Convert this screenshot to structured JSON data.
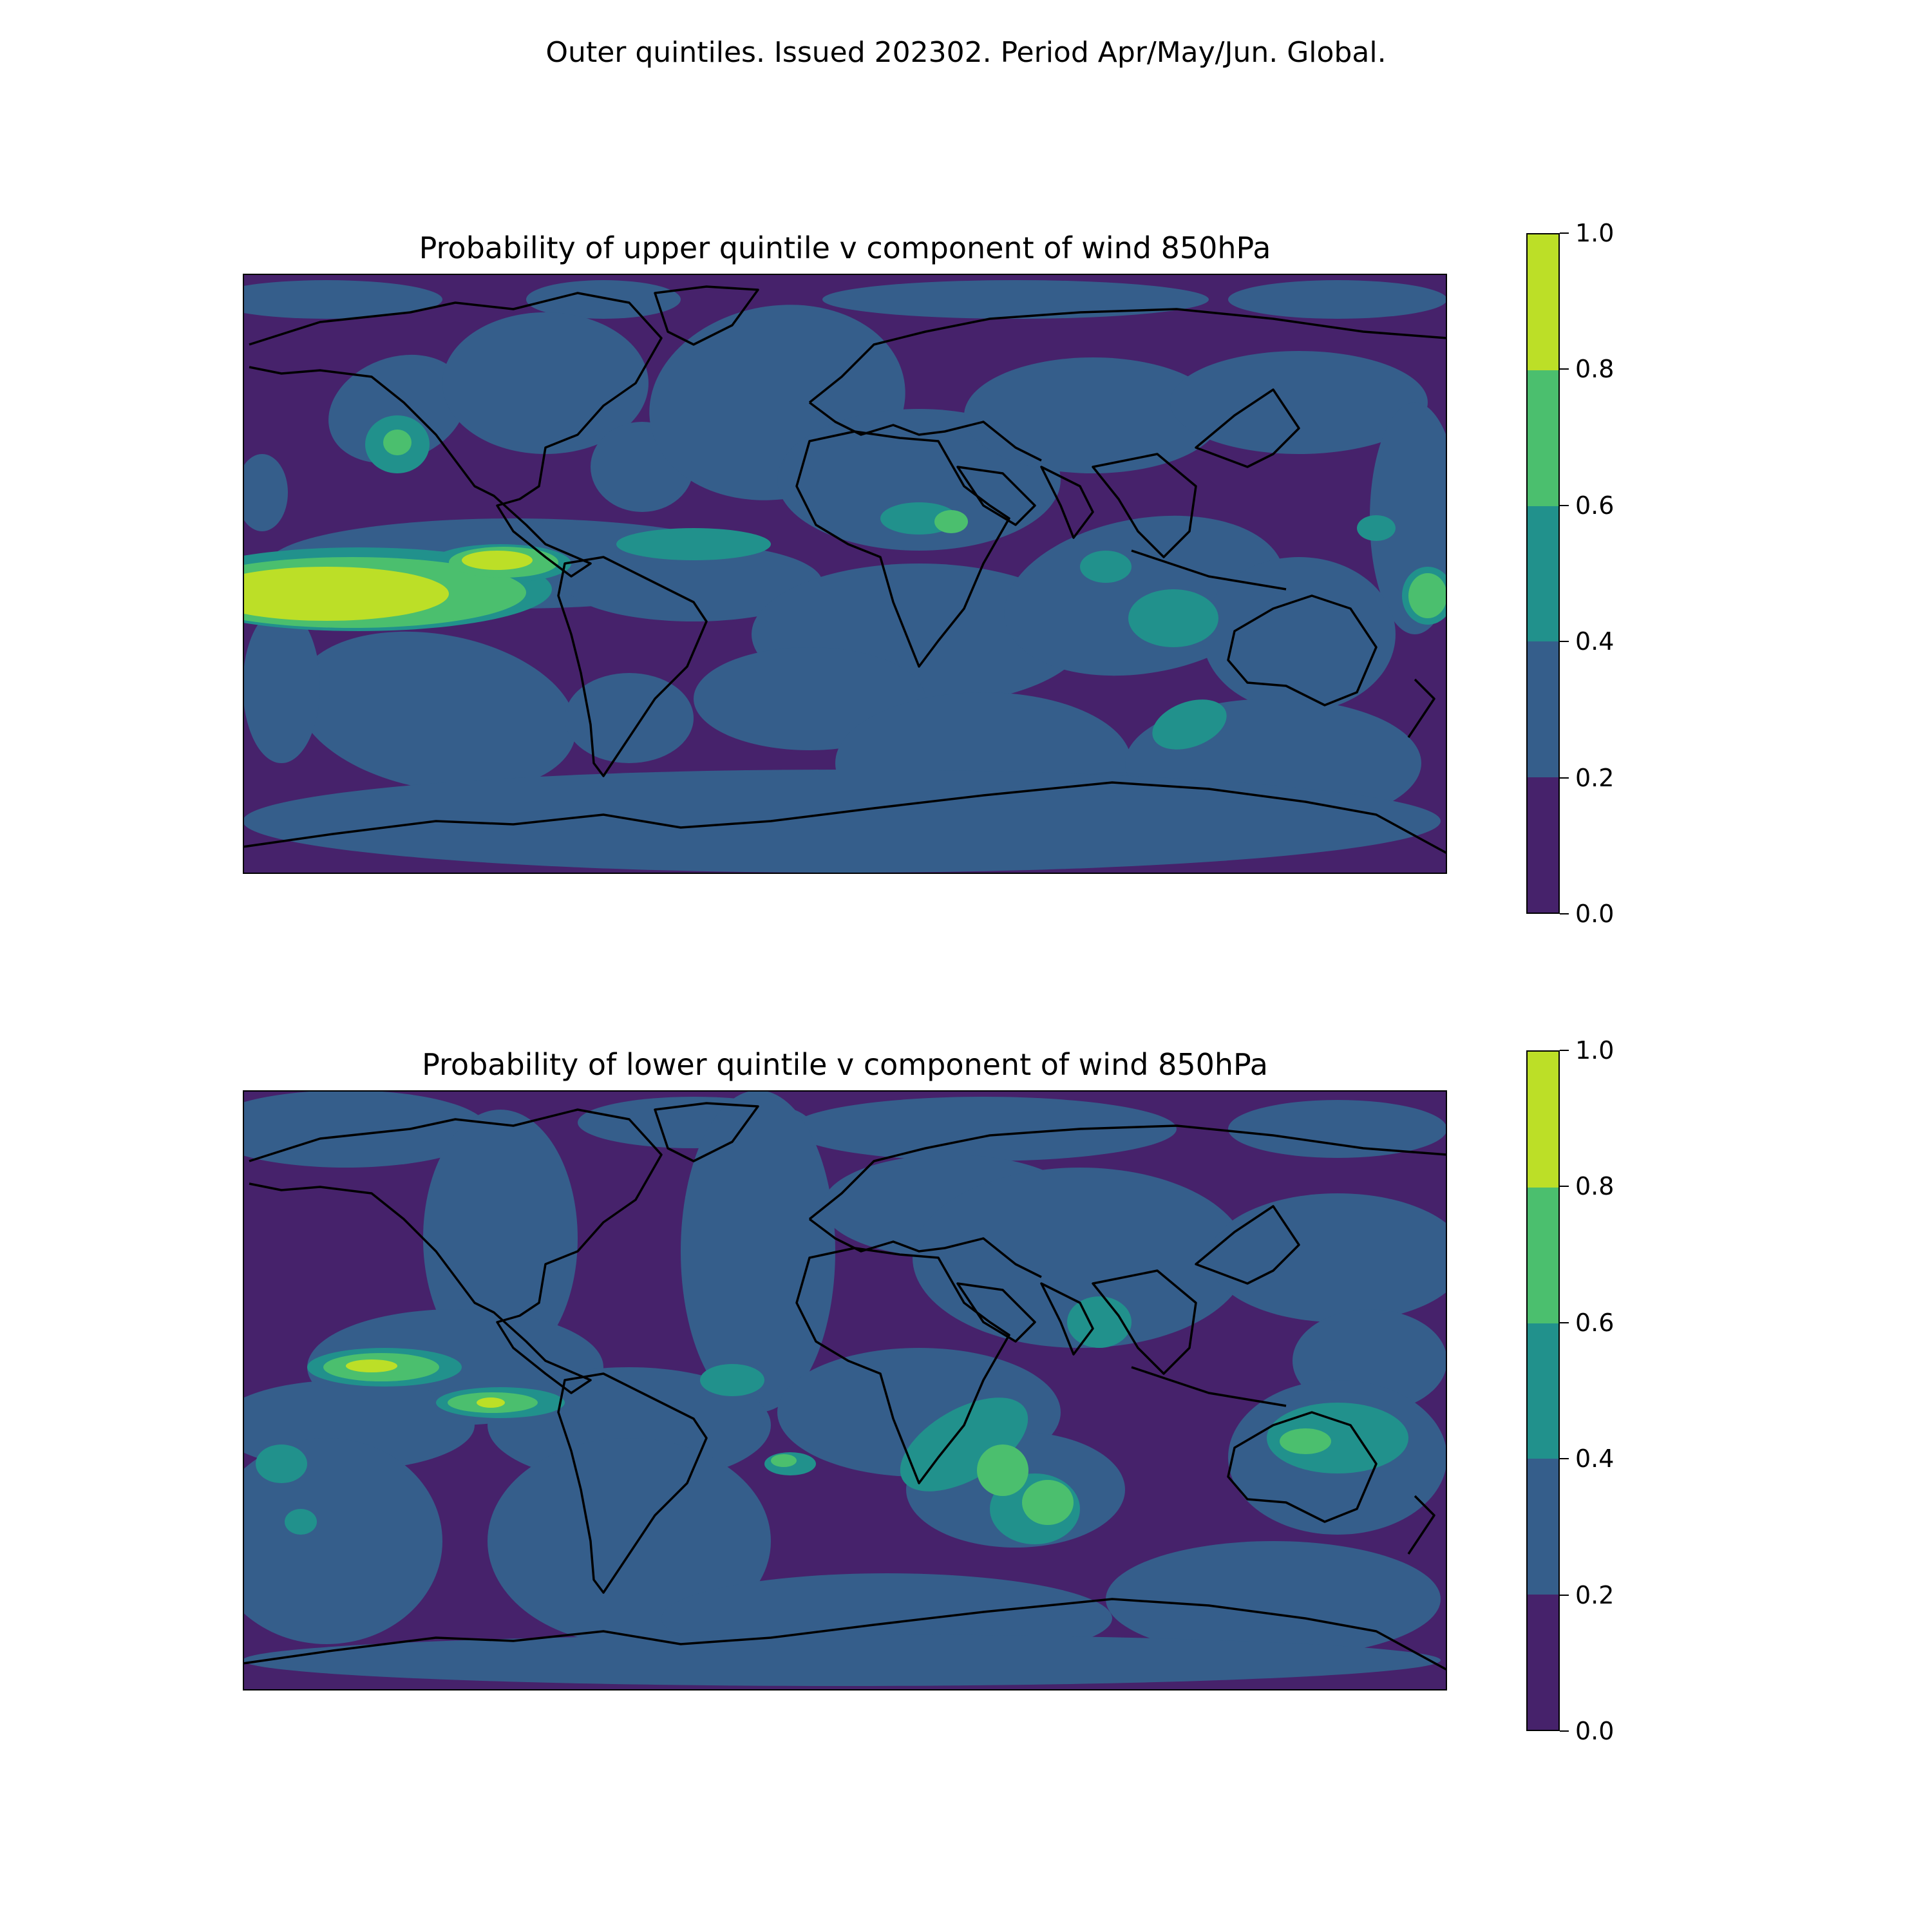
{
  "suptitle": "Outer quintiles. Issued 202302. Period Apr/May/Jun. Global.",
  "colorbar": {
    "levels": [
      0.0,
      0.2,
      0.4,
      0.6,
      0.8,
      1.0
    ],
    "tick_labels": [
      "0.0",
      "0.2",
      "0.4",
      "0.6",
      "0.8",
      "1.0"
    ],
    "colors": [
      "#46226b",
      "#355e8b",
      "#21918c",
      "#4bbf6e",
      "#bcdf27"
    ]
  },
  "panels": [
    {
      "title": "Probability of upper quintile v component of wind 850hPa"
    },
    {
      "title": "Probability of lower quintile v component of wind 850hPa"
    }
  ],
  "chart_data": [
    {
      "type": "heatmap",
      "title": "Probability of upper quintile v component of wind 850hPa",
      "value_range": [
        0.0,
        1.0
      ],
      "levels": [
        0.0,
        0.2,
        0.4,
        0.6,
        0.8,
        1.0
      ],
      "dominant_background_value_band": [
        0.0,
        0.2
      ],
      "notable_features": [
        {
          "region": "Tropical central/eastern Pacific (south of equator)",
          "band": [
            0.8,
            1.0
          ]
        },
        {
          "region": "Eastern Pacific off Central America",
          "band": [
            0.8,
            1.0
          ]
        },
        {
          "region": "Tropical western Pacific near dateline",
          "band": [
            0.6,
            0.8
          ]
        },
        {
          "region": "Tropical Atlantic",
          "band": [
            0.4,
            0.6
          ]
        },
        {
          "region": "Central Indian Ocean",
          "band": [
            0.4,
            0.6
          ]
        },
        {
          "region": "Southern Indian Ocean",
          "band": [
            0.4,
            0.6
          ]
        },
        {
          "region": "North Pacific",
          "band": [
            0.4,
            0.6
          ]
        }
      ]
    },
    {
      "type": "heatmap",
      "title": "Probability of lower quintile v component of wind 850hPa",
      "value_range": [
        0.0,
        1.0
      ],
      "levels": [
        0.0,
        0.2,
        0.4,
        0.6,
        0.8,
        1.0
      ],
      "dominant_background_value_band": [
        0.0,
        0.2
      ],
      "notable_features": [
        {
          "region": "Tropical central Pacific (north of equator)",
          "band": [
            0.8,
            1.0
          ]
        },
        {
          "region": "Eastern Pacific near equator",
          "band": [
            0.6,
            0.8
          ]
        },
        {
          "region": "Southern Africa / Mozambique Channel",
          "band": [
            0.4,
            0.6
          ]
        },
        {
          "region": "Madagascar / southwest Indian Ocean",
          "band": [
            0.4,
            0.6
          ]
        },
        {
          "region": "Northern Australia",
          "band": [
            0.4,
            0.6
          ]
        },
        {
          "region": "India / Bay of Bengal",
          "band": [
            0.4,
            0.6
          ]
        },
        {
          "region": "South Pacific",
          "band": [
            0.4,
            0.6
          ]
        }
      ]
    }
  ]
}
